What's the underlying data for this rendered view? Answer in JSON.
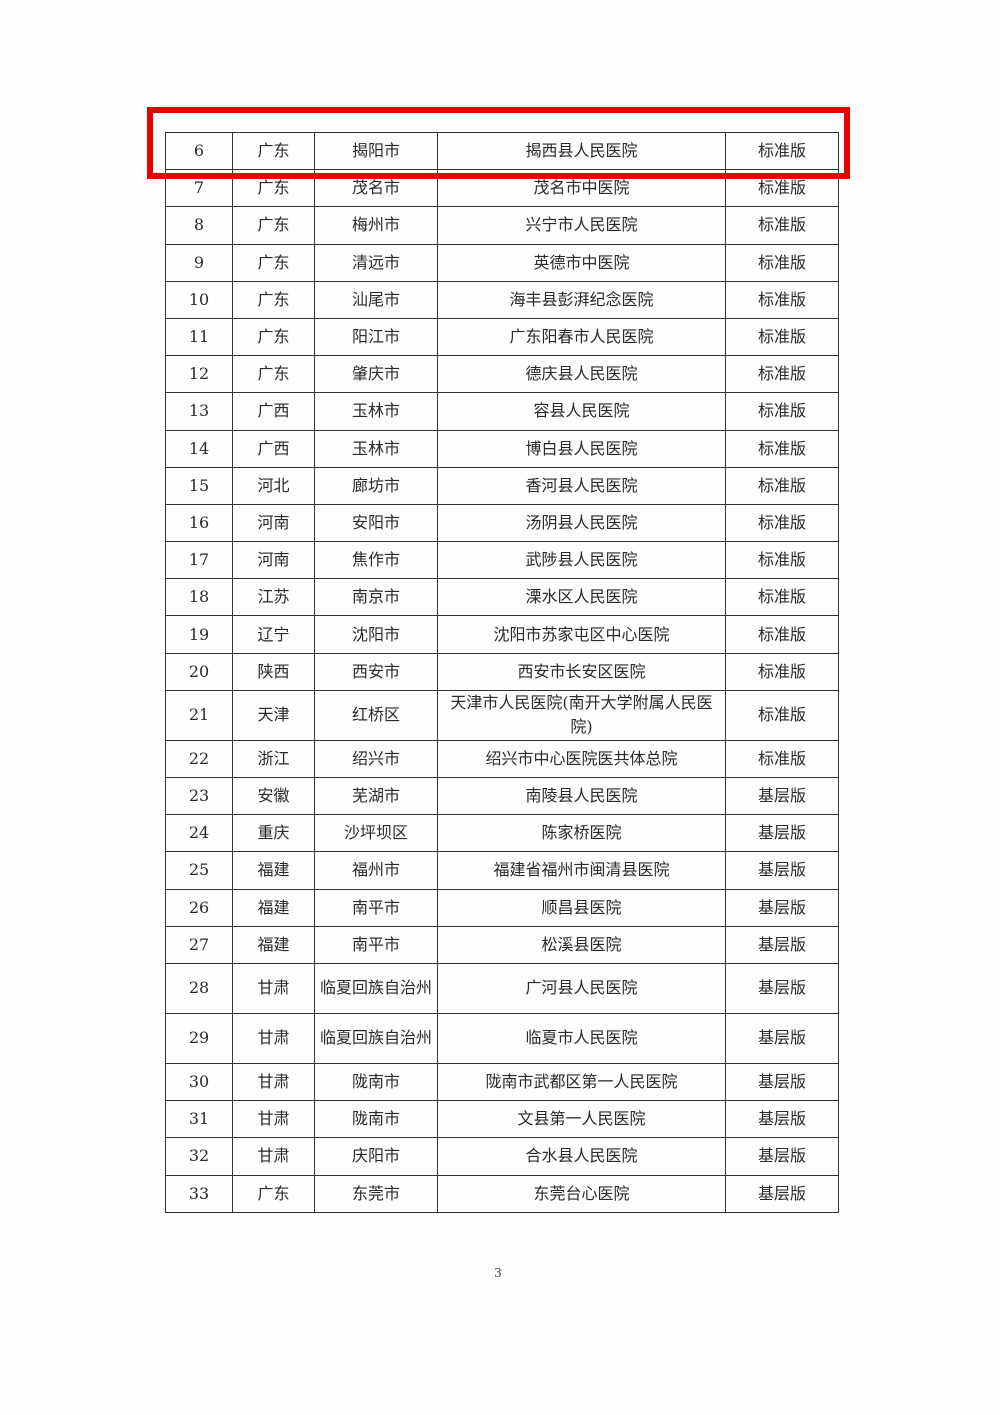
{
  "highlight_color": "#e60000",
  "rows": [
    [
      "6",
      "广东",
      "揭阳市",
      "揭西县人民医院",
      "标准版"
    ],
    [
      "7",
      "广东",
      "茂名市",
      "茂名市中医院",
      "标准版"
    ],
    [
      "8",
      "广东",
      "梅州市",
      "兴宁市人民医院",
      "标准版"
    ],
    [
      "9",
      "广东",
      "清远市",
      "英德市中医院",
      "标准版"
    ],
    [
      "10",
      "广东",
      "汕尾市",
      "海丰县彭湃纪念医院",
      "标准版"
    ],
    [
      "11",
      "广东",
      "阳江市",
      "广东阳春市人民医院",
      "标准版"
    ],
    [
      "12",
      "广东",
      "肇庆市",
      "德庆县人民医院",
      "标准版"
    ],
    [
      "13",
      "广西",
      "玉林市",
      "容县人民医院",
      "标准版"
    ],
    [
      "14",
      "广西",
      "玉林市",
      "博白县人民医院",
      "标准版"
    ],
    [
      "15",
      "河北",
      "廊坊市",
      "香河县人民医院",
      "标准版"
    ],
    [
      "16",
      "河南",
      "安阳市",
      "汤阴县人民医院",
      "标准版"
    ],
    [
      "17",
      "河南",
      "焦作市",
      "武陟县人民医院",
      "标准版"
    ],
    [
      "18",
      "江苏",
      "南京市",
      "溧水区人民医院",
      "标准版"
    ],
    [
      "19",
      "辽宁",
      "沈阳市",
      "沈阳市苏家屯区中心医院",
      "标准版"
    ],
    [
      "20",
      "陕西",
      "西安市",
      "西安市长安区医院",
      "标准版"
    ],
    [
      "21",
      "天津",
      "红桥区",
      "天津市人民医院(南开大学附属人民医院)",
      "标准版"
    ],
    [
      "22",
      "浙江",
      "绍兴市",
      "绍兴市中心医院医共体总院",
      "标准版"
    ],
    [
      "23",
      "安徽",
      "芜湖市",
      "南陵县人民医院",
      "基层版"
    ],
    [
      "24",
      "重庆",
      "沙坪坝区",
      "陈家桥医院",
      "基层版"
    ],
    [
      "25",
      "福建",
      "福州市",
      "福建省福州市闽清县医院",
      "基层版"
    ],
    [
      "26",
      "福建",
      "南平市",
      "顺昌县医院",
      "基层版"
    ],
    [
      "27",
      "福建",
      "南平市",
      "松溪县医院",
      "基层版"
    ],
    [
      "28",
      "甘肃",
      "临夏回族自治州",
      "广河县人民医院",
      "基层版"
    ],
    [
      "29",
      "甘肃",
      "临夏回族自治州",
      "临夏市人民医院",
      "基层版"
    ],
    [
      "30",
      "甘肃",
      "陇南市",
      "陇南市武都区第一人民医院",
      "基层版"
    ],
    [
      "31",
      "甘肃",
      "陇南市",
      "文县第一人民医院",
      "基层版"
    ],
    [
      "32",
      "甘肃",
      "庆阳市",
      "合水县人民医院",
      "基层版"
    ],
    [
      "33",
      "广东",
      "东莞市",
      "东莞台心医院",
      "基层版"
    ]
  ],
  "page_number": "3"
}
